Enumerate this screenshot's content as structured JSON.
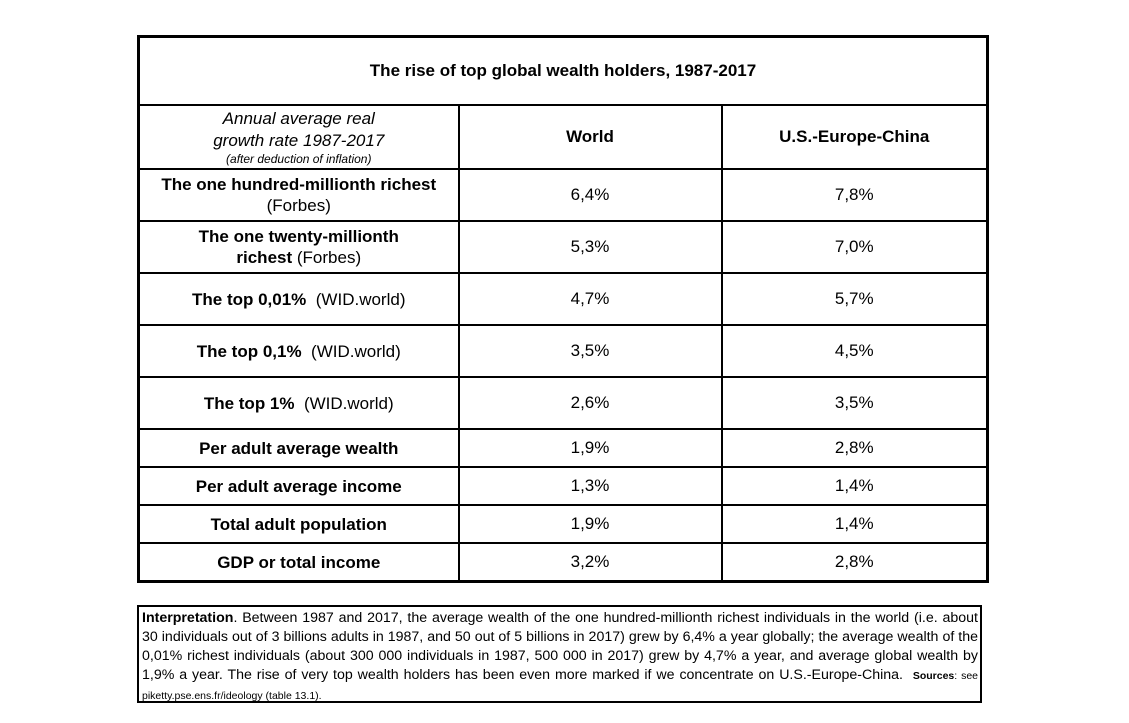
{
  "title": "The rise of top global wealth holders, 1987-2017",
  "header": {
    "label_line1": "Annual average real",
    "label_line2": "growth rate 1987-2017",
    "label_note": "(after deduction of inflation)",
    "col_world": "World",
    "col_region": "U.S.-Europe-China"
  },
  "rows": [
    {
      "label_bold": "The one hundred-millionth richest",
      "label_src": "(Forbes)",
      "world": "6,4%",
      "region": "7,8%"
    },
    {
      "label_bold": "The one twenty-millionth",
      "label_bold2": "richest",
      "label_src": "(Forbes)",
      "world": "5,3%",
      "region": "7,0%"
    },
    {
      "label_bold": "The top 0,01%",
      "label_src": "(WID.world)",
      "world": "4,7%",
      "region": "5,7%"
    },
    {
      "label_bold": "The top 0,1%",
      "label_src": "(WID.world)",
      "world": "3,5%",
      "region": "4,5%"
    },
    {
      "label_bold": "The top 1%",
      "label_src": "(WID.world)",
      "world": "2,6%",
      "region": "3,5%"
    },
    {
      "label_bold": "Per adult average wealth",
      "world": "1,9%",
      "region": "2,8%"
    },
    {
      "label_bold": "Per adult average income",
      "world": "1,3%",
      "region": "1,4%"
    },
    {
      "label_bold": "Total adult population",
      "world": "1,9%",
      "region": "1,4%"
    },
    {
      "label_bold": "GDP or total income",
      "world": "3,2%",
      "region": "2,8%"
    }
  ],
  "interpretation": {
    "label": "Interpretation",
    "text": ". Between 1987 and 2017, the average wealth of the one hundred-millionth richest individuals in the world (i.e. about 30 individuals out of 3 billions adults in 1987, and 50 out of 5 billions in 2017) grew by 6,4% a year globally; the average wealth of the 0,01% richest individuals (about 300 000 individuals in 1987, 500 000 in 2017) grew by 4,7% a year, and average global wealth by 1,9% a year. The rise of very top wealth holders has been even more marked if we concentrate on U.S.-Europe-China.",
    "sources_label": "Sources",
    "sources_text": ": see piketty.pse.ens.fr/ideology (table 13.1)."
  }
}
